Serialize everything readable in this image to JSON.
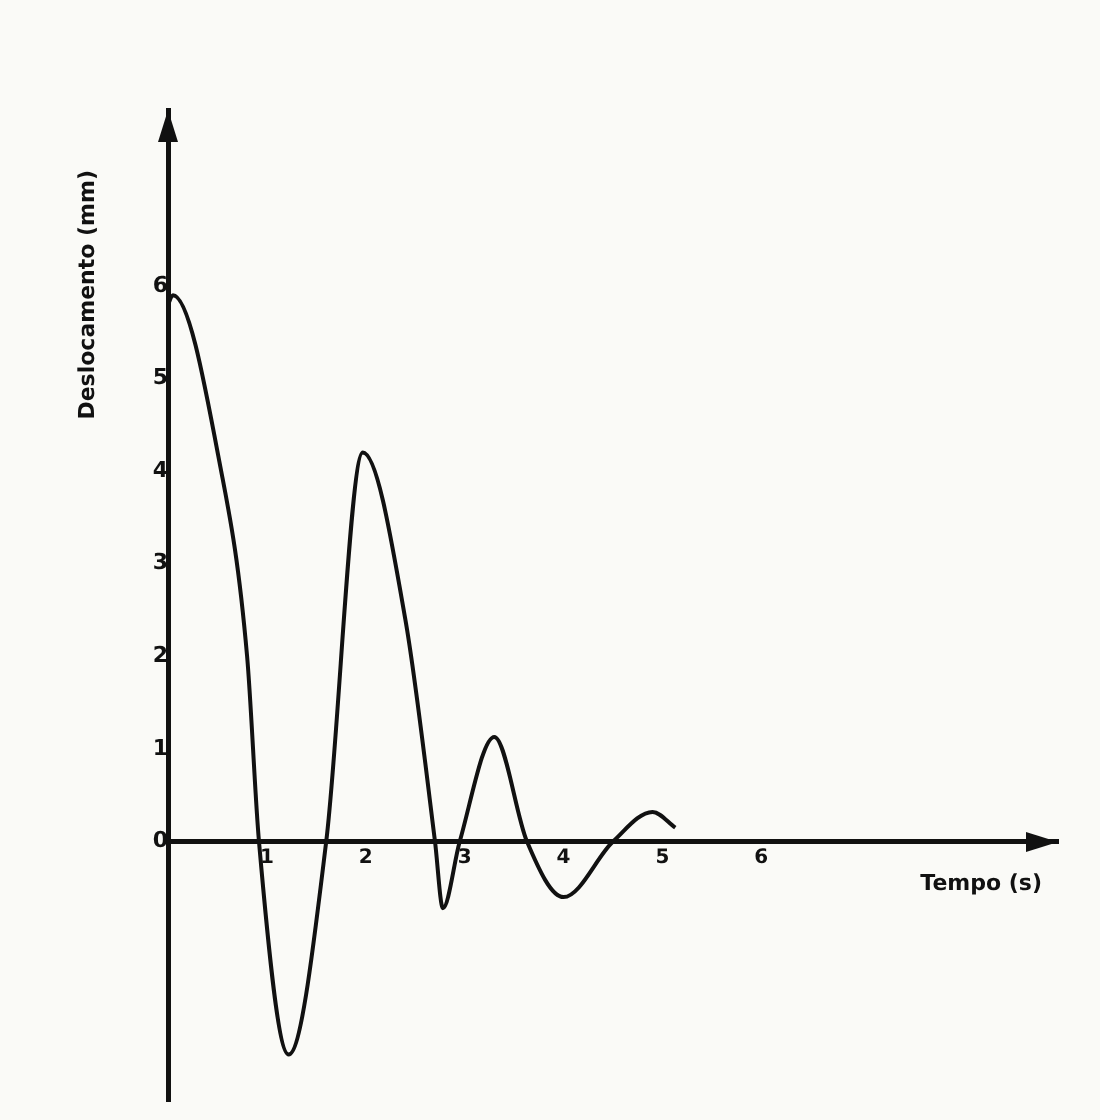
{
  "chart_data": {
    "type": "line",
    "xlabel": "Tempo (s)",
    "ylabel": "Deslocamento (mm)",
    "xlim": [
      0,
      9
    ],
    "ylim": [
      -2.8,
      7.9
    ],
    "xticks": [
      1,
      2,
      3,
      4,
      5,
      6
    ],
    "yticks": [
      0,
      1,
      2,
      3,
      4,
      5,
      6
    ],
    "grid": false,
    "legend": false,
    "marker": "none",
    "line_style": "solid",
    "series": [
      {
        "color": "#111111",
        "x": [
          0,
          0.05,
          0.52,
          0.8,
          0.92,
          1.22,
          1.6,
          1.97,
          2.4,
          2.7,
          2.78,
          2.95,
          3.3,
          3.63,
          4.0,
          4.5,
          4.9,
          5.13
        ],
        "values": [
          5.8,
          5.9,
          4.1,
          2.0,
          0,
          -2.3,
          0,
          4.2,
          2.4,
          0,
          -0.72,
          0,
          1.13,
          0,
          -0.6,
          0,
          0.32,
          0.15
        ]
      }
    ]
  }
}
